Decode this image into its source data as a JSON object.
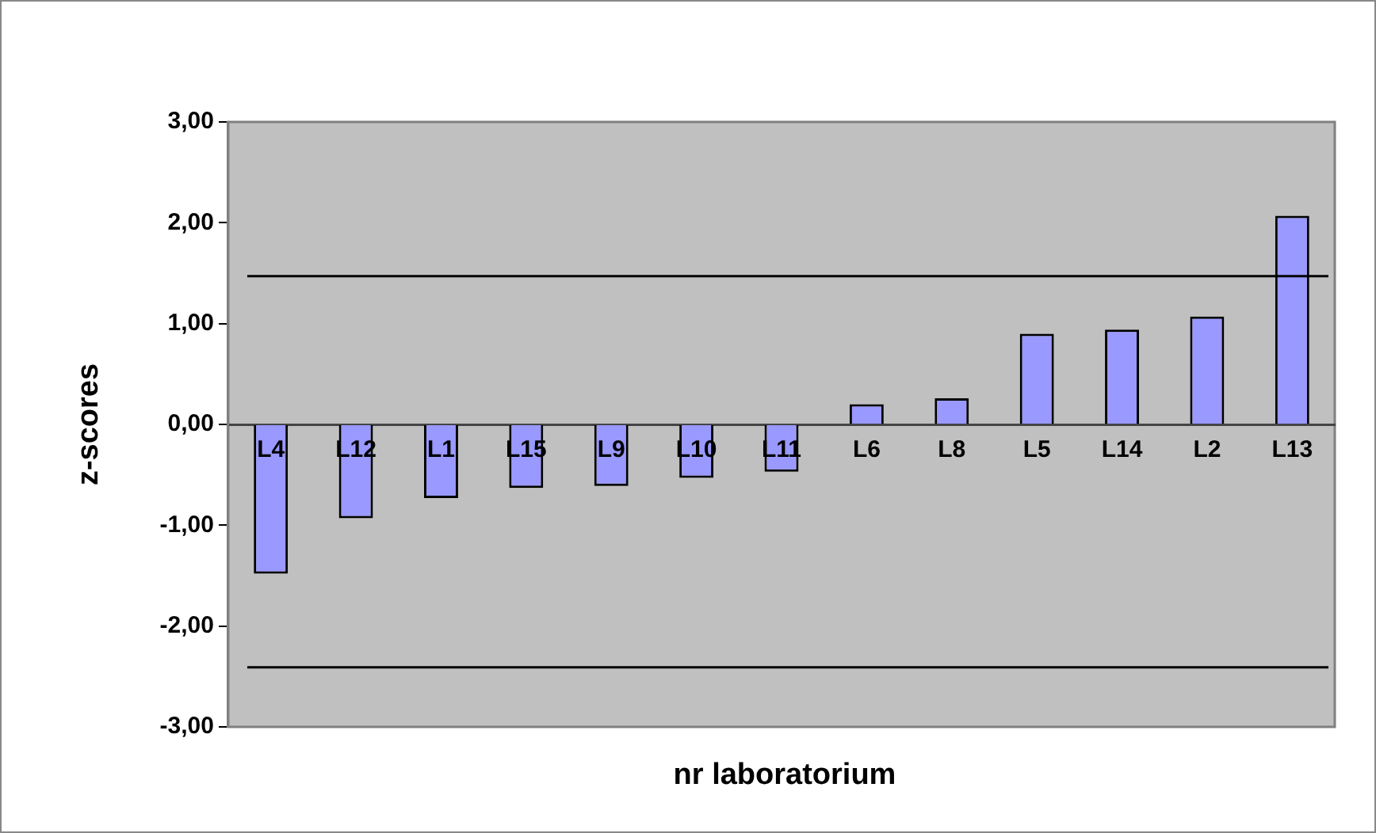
{
  "chart_data": {
    "type": "bar",
    "xlabel": "nr laboratorium",
    "ylabel": "z-scores",
    "categories": [
      "L4",
      "L12",
      "L1",
      "L15",
      "L9",
      "L10",
      "L11",
      "L6",
      "L8",
      "L5",
      "L14",
      "L2",
      "L13"
    ],
    "values": [
      -1.48,
      -0.93,
      -0.73,
      -0.63,
      -0.61,
      -0.53,
      -0.47,
      0.2,
      0.26,
      0.9,
      0.94,
      1.07,
      2.07
    ],
    "color": "#9999ff",
    "ylim": [
      -3,
      3
    ],
    "yticks": [
      {
        "value": -3,
        "label": "-3,00"
      },
      {
        "value": -2,
        "label": "-2,00"
      },
      {
        "value": -1,
        "label": "-1,00"
      },
      {
        "value": 0,
        "label": "0,00"
      },
      {
        "value": 1,
        "label": "1,00"
      },
      {
        "value": 2,
        "label": "2,00"
      },
      {
        "value": 3,
        "label": "3,00"
      }
    ],
    "ref_lines": [
      {
        "axis": "y",
        "value": 1.47,
        "color": "#000000"
      },
      {
        "axis": "y",
        "value": -2.41,
        "color": "#000000"
      }
    ],
    "grid": false,
    "legend": false
  }
}
